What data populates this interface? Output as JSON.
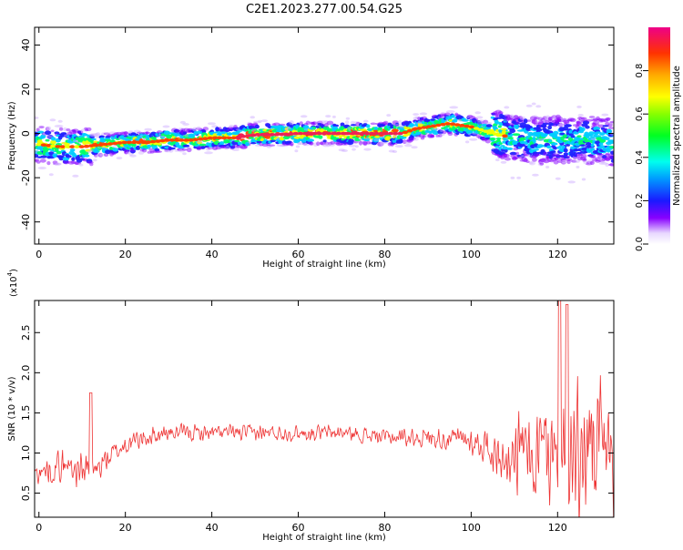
{
  "figure": {
    "title": "C2E1.2023.277.00.54.G25"
  },
  "chart_data": [
    {
      "type": "heatmap",
      "xlabel": "Height of straight line (km)",
      "ylabel": "Frequency (Hz)",
      "xlim": [
        -1,
        133
      ],
      "ylim": [
        -50,
        48
      ],
      "xticks": [
        0,
        20,
        40,
        60,
        80,
        100,
        120
      ],
      "yticks": [
        -40,
        -20,
        0,
        20,
        40
      ],
      "ridge": {
        "x": [
          0,
          5,
          10,
          15,
          20,
          25,
          30,
          35,
          40,
          45,
          50,
          55,
          60,
          65,
          70,
          75,
          80,
          84,
          87,
          90,
          95,
          100,
          105,
          110,
          115,
          120,
          125,
          130,
          133
        ],
        "frequency": [
          -5,
          -6,
          -6,
          -5,
          -4,
          -4,
          -3,
          -3,
          -2,
          -2,
          -0.5,
          -0.5,
          0,
          0,
          0,
          0,
          0,
          0,
          2,
          3,
          4.5,
          3,
          0,
          -2,
          -3,
          -3,
          -3,
          -3,
          -4
        ]
      },
      "grid": false
    },
    {
      "type": "line",
      "xlabel": "Height of straight line (km)",
      "ylabel": "SNR (10 * v/v)",
      "yscale_label": "(x10",
      "yscale_exp": "4",
      "yscale_close": ")",
      "xlim": [
        -1,
        133
      ],
      "ylim": [
        0.2,
        2.9
      ],
      "xticks": [
        0,
        20,
        40,
        60,
        80,
        100,
        120
      ],
      "yticks": [
        "0.5",
        "1.0",
        "1.5",
        "2.0",
        "2.5"
      ],
      "series_color": "#ee3333",
      "envelope": {
        "x": [
          0,
          5,
          10,
          13,
          15,
          20,
          25,
          30,
          40,
          50,
          60,
          70,
          80,
          90,
          100,
          105,
          110,
          115,
          120,
          125,
          130,
          133
        ],
        "mean": [
          0.75,
          0.85,
          0.8,
          0.75,
          0.9,
          1.1,
          1.2,
          1.25,
          1.25,
          1.25,
          1.25,
          1.25,
          1.2,
          1.2,
          1.15,
          1.05,
          1.0,
          1.0,
          1.0,
          1.0,
          1.0,
          1.0
        ],
        "amp": [
          0.15,
          0.25,
          0.3,
          0.25,
          0.2,
          0.15,
          0.15,
          0.12,
          0.12,
          0.12,
          0.12,
          0.12,
          0.12,
          0.15,
          0.2,
          0.3,
          0.45,
          0.6,
          0.75,
          0.8,
          0.7,
          0.6
        ]
      },
      "grid": false
    }
  ],
  "colorbar": {
    "label": "Normalized spectral amplitude",
    "ticks": [
      "0.0",
      "0.2",
      "0.4",
      "0.6",
      "0.8"
    ],
    "range": [
      0,
      1
    ]
  }
}
